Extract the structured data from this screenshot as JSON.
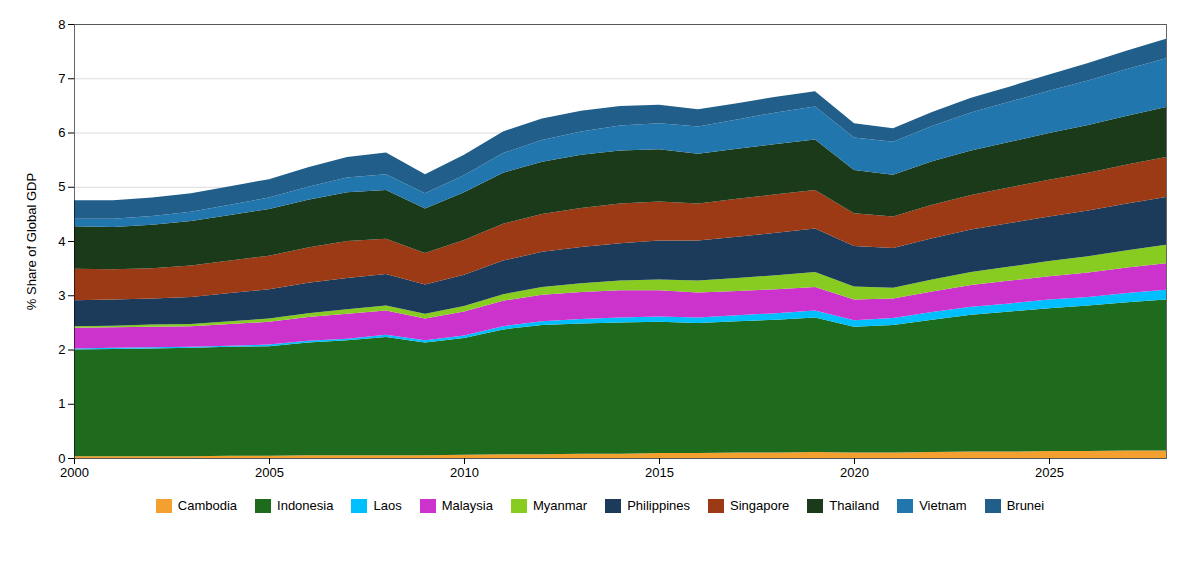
{
  "chart_data": {
    "type": "area",
    "stacked": true,
    "ylabel": "% Share of Global GDP",
    "x": [
      2000,
      2001,
      2002,
      2003,
      2004,
      2005,
      2006,
      2007,
      2008,
      2009,
      2010,
      2011,
      2012,
      2013,
      2014,
      2015,
      2016,
      2017,
      2018,
      2019,
      2020,
      2021,
      2022,
      2023,
      2024,
      2025,
      2026,
      2027,
      2028
    ],
    "xlim": [
      2000,
      2028
    ],
    "xticks": [
      2000,
      2005,
      2010,
      2015,
      2020,
      2025
    ],
    "ylim": [
      0,
      8
    ],
    "yticks": [
      0,
      1,
      2,
      3,
      4,
      5,
      6,
      7,
      8
    ],
    "grid": true,
    "legend": "bottom",
    "series": [
      {
        "name": "Cambodia",
        "color": "#F4A030",
        "values": [
          0.03,
          0.03,
          0.03,
          0.03,
          0.04,
          0.04,
          0.05,
          0.05,
          0.05,
          0.05,
          0.06,
          0.07,
          0.07,
          0.08,
          0.08,
          0.09,
          0.09,
          0.1,
          0.1,
          0.11,
          0.1,
          0.1,
          0.11,
          0.12,
          0.12,
          0.13,
          0.13,
          0.14,
          0.14
        ]
      },
      {
        "name": "Indonesia",
        "color": "#1E6B1E",
        "values": [
          1.97,
          1.98,
          1.99,
          2.0,
          2.01,
          2.02,
          2.08,
          2.12,
          2.18,
          2.08,
          2.15,
          2.3,
          2.38,
          2.4,
          2.42,
          2.42,
          2.4,
          2.42,
          2.45,
          2.48,
          2.32,
          2.35,
          2.44,
          2.52,
          2.58,
          2.63,
          2.68,
          2.73,
          2.78
        ]
      },
      {
        "name": "Laos",
        "color": "#00BFFF",
        "values": [
          0.02,
          0.02,
          0.02,
          0.02,
          0.02,
          0.03,
          0.03,
          0.03,
          0.04,
          0.04,
          0.05,
          0.06,
          0.07,
          0.08,
          0.09,
          0.1,
          0.1,
          0.11,
          0.12,
          0.13,
          0.12,
          0.13,
          0.14,
          0.15,
          0.15,
          0.16,
          0.16,
          0.17,
          0.18
        ]
      },
      {
        "name": "Malaysia",
        "color": "#CC33CC",
        "values": [
          0.38,
          0.38,
          0.38,
          0.38,
          0.4,
          0.42,
          0.44,
          0.46,
          0.45,
          0.4,
          0.44,
          0.47,
          0.49,
          0.5,
          0.5,
          0.48,
          0.46,
          0.45,
          0.44,
          0.43,
          0.38,
          0.36,
          0.38,
          0.4,
          0.42,
          0.43,
          0.45,
          0.47,
          0.49
        ]
      },
      {
        "name": "Myanmar",
        "color": "#88CC22",
        "values": [
          0.03,
          0.03,
          0.04,
          0.04,
          0.05,
          0.06,
          0.07,
          0.08,
          0.09,
          0.09,
          0.1,
          0.12,
          0.14,
          0.16,
          0.18,
          0.2,
          0.22,
          0.24,
          0.26,
          0.28,
          0.24,
          0.2,
          0.22,
          0.24,
          0.26,
          0.28,
          0.3,
          0.32,
          0.34
        ]
      },
      {
        "name": "Philippines",
        "color": "#1C3A5A",
        "values": [
          0.48,
          0.48,
          0.48,
          0.5,
          0.52,
          0.54,
          0.56,
          0.58,
          0.58,
          0.54,
          0.58,
          0.62,
          0.65,
          0.67,
          0.69,
          0.72,
          0.74,
          0.76,
          0.78,
          0.8,
          0.75,
          0.73,
          0.76,
          0.78,
          0.8,
          0.82,
          0.84,
          0.86,
          0.88
        ]
      },
      {
        "name": "Singapore",
        "color": "#9B3A15",
        "values": [
          0.58,
          0.56,
          0.56,
          0.58,
          0.6,
          0.62,
          0.65,
          0.68,
          0.65,
          0.58,
          0.64,
          0.68,
          0.7,
          0.72,
          0.73,
          0.72,
          0.68,
          0.7,
          0.71,
          0.71,
          0.6,
          0.58,
          0.62,
          0.64,
          0.66,
          0.68,
          0.7,
          0.72,
          0.74
        ]
      },
      {
        "name": "Thailand",
        "color": "#1A3A1A",
        "values": [
          0.78,
          0.78,
          0.8,
          0.82,
          0.84,
          0.86,
          0.88,
          0.9,
          0.9,
          0.82,
          0.88,
          0.94,
          0.96,
          0.98,
          0.98,
          0.96,
          0.92,
          0.92,
          0.93,
          0.93,
          0.8,
          0.77,
          0.8,
          0.82,
          0.84,
          0.86,
          0.88,
          0.9,
          0.92
        ]
      },
      {
        "name": "Vietnam",
        "color": "#2176AE",
        "values": [
          0.14,
          0.15,
          0.16,
          0.17,
          0.19,
          0.21,
          0.24,
          0.27,
          0.29,
          0.28,
          0.31,
          0.36,
          0.4,
          0.43,
          0.46,
          0.48,
          0.5,
          0.54,
          0.58,
          0.61,
          0.6,
          0.61,
          0.65,
          0.7,
          0.74,
          0.78,
          0.82,
          0.86,
          0.9
        ]
      },
      {
        "name": "Brunei",
        "color": "#215F8A",
        "values": [
          0.34,
          0.34,
          0.34,
          0.34,
          0.34,
          0.34,
          0.36,
          0.38,
          0.4,
          0.35,
          0.38,
          0.4,
          0.4,
          0.38,
          0.36,
          0.34,
          0.32,
          0.3,
          0.29,
          0.28,
          0.26,
          0.25,
          0.26,
          0.27,
          0.28,
          0.3,
          0.32,
          0.34,
          0.36
        ]
      }
    ]
  }
}
